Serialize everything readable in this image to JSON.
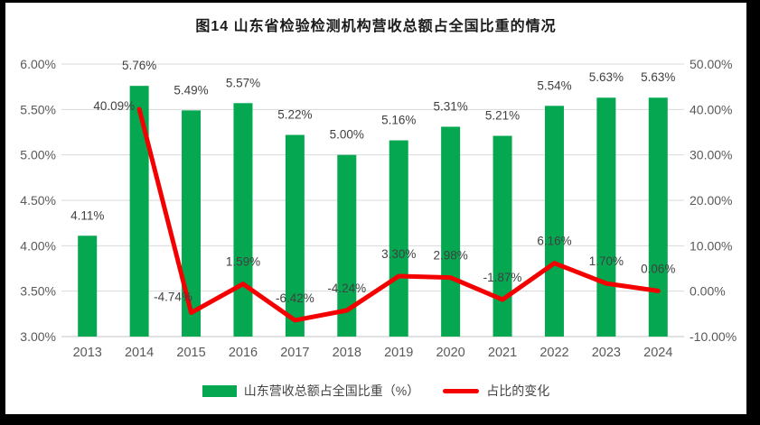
{
  "title": "图14  山东省检验检测机构营收总额占全国比重的情况",
  "colors": {
    "bar": "#05A850",
    "line": "#F40000",
    "grid": "#D9D9D9",
    "axis_line": "#C6C6C6",
    "axis_text": "#595959",
    "data_label": "#404040",
    "frame": "#000000"
  },
  "chart_data": {
    "type": "bar+line combo",
    "title": "图14  山东省检验检测机构营收总额占全国比重的情况",
    "categories": [
      "2013",
      "2014",
      "2015",
      "2016",
      "2017",
      "2018",
      "2019",
      "2020",
      "2021",
      "2022",
      "2023",
      "2024"
    ],
    "series": [
      {
        "name": "山东营收总额占全国比重（%）",
        "type": "bar",
        "axis": "left",
        "values": [
          4.11,
          5.76,
          5.49,
          5.57,
          5.22,
          5.0,
          5.16,
          5.31,
          5.21,
          5.54,
          5.63,
          5.63
        ],
        "labels": [
          "4.11%",
          "5.76%",
          "5.49%",
          "5.57%",
          "5.22%",
          "5.00%",
          "5.16%",
          "5.31%",
          "5.21%",
          "5.54%",
          "5.63%",
          "5.63%"
        ]
      },
      {
        "name": "占比的变化",
        "type": "line",
        "axis": "right",
        "values": [
          null,
          40.09,
          -4.74,
          1.59,
          -6.42,
          -4.24,
          3.3,
          2.98,
          -1.87,
          6.16,
          1.7,
          0.06
        ],
        "labels": [
          null,
          "40.09%",
          "-4.74%",
          "1.59%",
          "-6.42%",
          "-4.24%",
          "3.30%",
          "2.98%",
          "-1.87%",
          "6.16%",
          "1.70%",
          "0.06%"
        ]
      }
    ],
    "left_axis": {
      "min": 3.0,
      "max": 6.0,
      "step": 0.5,
      "ticks": [
        "6.00%",
        "5.50%",
        "5.00%",
        "4.50%",
        "4.00%",
        "3.50%",
        "3.00%"
      ]
    },
    "right_axis": {
      "min": -10,
      "max": 50,
      "step": 10,
      "ticks": [
        "50.00%",
        "40.00%",
        "30.00%",
        "20.00%",
        "10.00%",
        "0.00%",
        "-10.00%"
      ]
    },
    "grid": true,
    "legend_position": "bottom"
  }
}
